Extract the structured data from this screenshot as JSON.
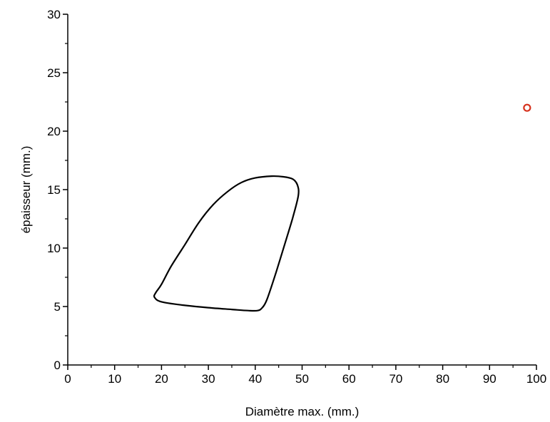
{
  "chart_data": {
    "type": "scatter",
    "title": "",
    "xlabel": "Diamètre max. (mm.)",
    "ylabel": "épaisseur (mm.)",
    "xlim": [
      0,
      100
    ],
    "ylim": [
      0,
      30
    ],
    "x_ticks": [
      0,
      10,
      20,
      30,
      40,
      50,
      60,
      70,
      80,
      90,
      100
    ],
    "y_ticks": [
      0,
      5,
      10,
      15,
      20,
      25,
      30
    ],
    "grid": false,
    "legend": "none",
    "series": [
      {
        "kind": "closed-contour",
        "color": "#000000",
        "points": [
          [
            18.8,
            6.2
          ],
          [
            18.5,
            5.8
          ],
          [
            20.0,
            5.4
          ],
          [
            25.0,
            5.1
          ],
          [
            30.0,
            4.9
          ],
          [
            35.0,
            4.75
          ],
          [
            38.5,
            4.65
          ],
          [
            40.5,
            4.65
          ],
          [
            41.5,
            4.9
          ],
          [
            42.5,
            5.6
          ],
          [
            44.5,
            8.0
          ],
          [
            46.5,
            10.6
          ],
          [
            48.0,
            12.6
          ],
          [
            49.2,
            14.5
          ],
          [
            49.0,
            15.4
          ],
          [
            48.0,
            15.9
          ],
          [
            46.0,
            16.1
          ],
          [
            43.5,
            16.15
          ],
          [
            40.0,
            16.0
          ],
          [
            37.0,
            15.6
          ],
          [
            34.0,
            14.8
          ],
          [
            31.0,
            13.7
          ],
          [
            28.0,
            12.2
          ],
          [
            25.0,
            10.3
          ],
          [
            22.0,
            8.4
          ],
          [
            20.0,
            6.9
          ],
          [
            18.8,
            6.2
          ]
        ]
      },
      {
        "kind": "point",
        "marker": "open-circle",
        "color": "#d6311c",
        "points": [
          [
            98,
            22
          ]
        ]
      }
    ]
  }
}
